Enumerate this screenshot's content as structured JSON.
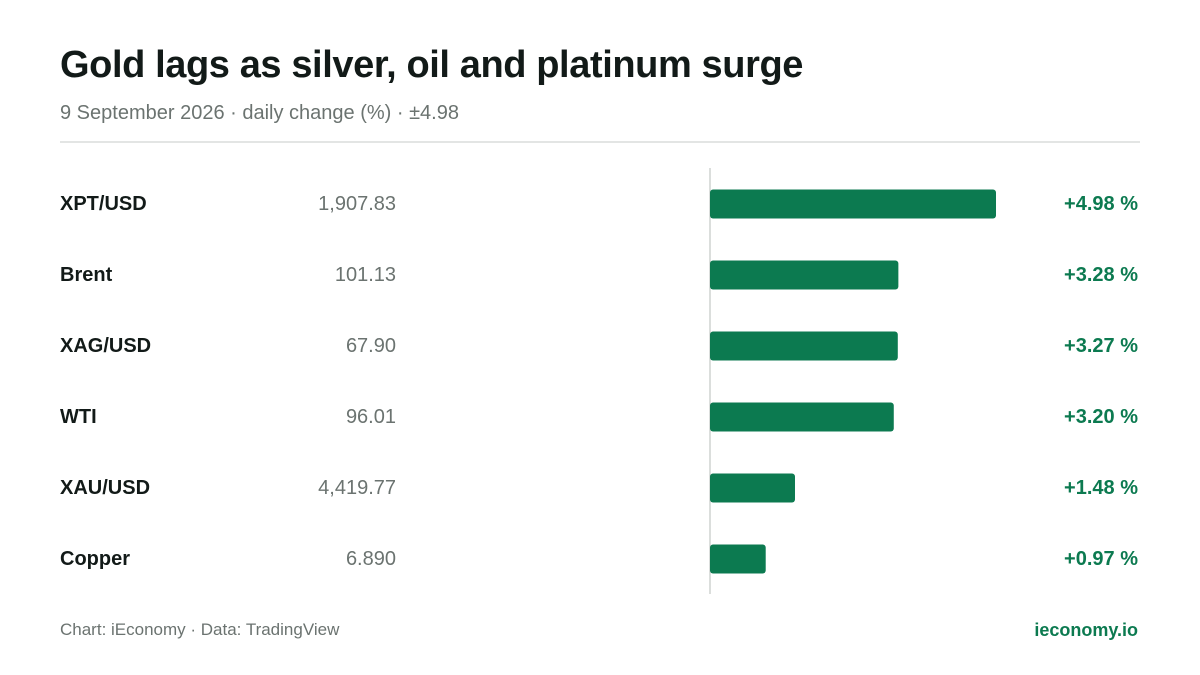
{
  "title": "Gold lags as silver, oil and platinum surge",
  "subtitle": "9 September 2026 · daily change (%) · ±4.98",
  "footer": {
    "source": "Chart: iEconomy · Data: TradingView",
    "brand": "ieconomy.io"
  },
  "colors": {
    "positive": "#0c7a50",
    "axis": "#cfd3d1"
  },
  "chart_data": {
    "type": "bar",
    "orientation": "horizontal",
    "xlim": [
      -4.98,
      4.98
    ],
    "grid": false,
    "rows": [
      {
        "name": "XPT/USD",
        "price": "1,907.83",
        "change": 4.98,
        "change_label": "+4.98 %"
      },
      {
        "name": "Brent",
        "price": "101.13",
        "change": 3.28,
        "change_label": "+3.28 %"
      },
      {
        "name": "XAG/USD",
        "price": "67.90",
        "change": 3.27,
        "change_label": "+3.27 %"
      },
      {
        "name": "WTI",
        "price": "96.01",
        "change": 3.2,
        "change_label": "+3.20 %"
      },
      {
        "name": "XAU/USD",
        "price": "4,419.77",
        "change": 1.48,
        "change_label": "+1.48 %"
      },
      {
        "name": "Copper",
        "price": "6.890",
        "change": 0.97,
        "change_label": "+0.97 %"
      }
    ]
  }
}
